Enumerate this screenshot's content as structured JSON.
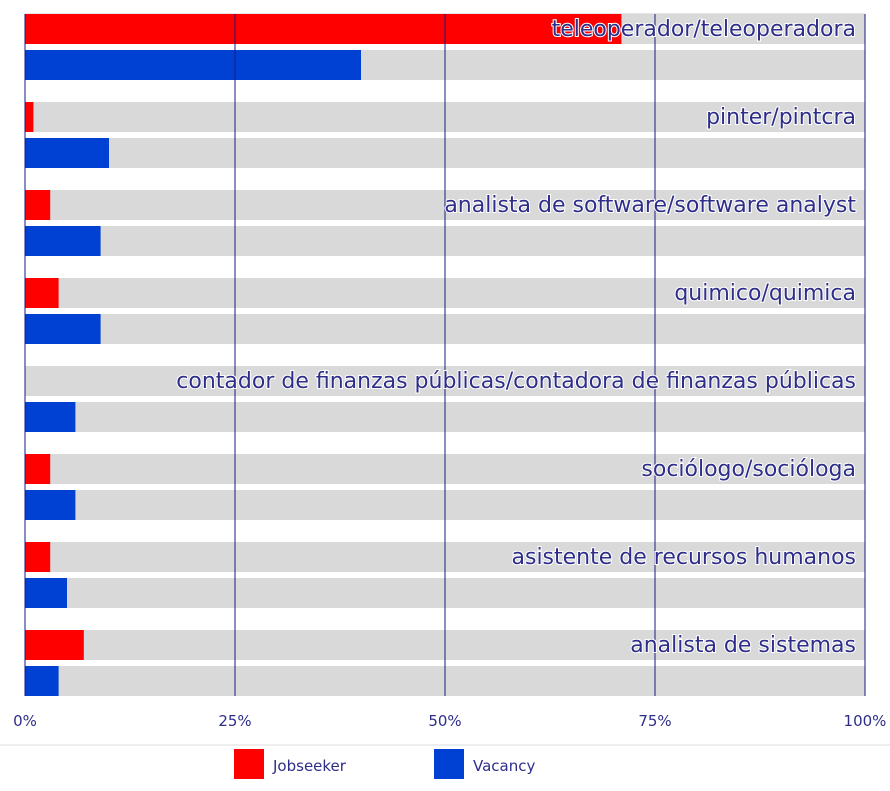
{
  "chart_data": {
    "type": "bar",
    "orientation": "horizontal",
    "categories": [
      "teleoperador/teleoperadora",
      "pinter/pintcra",
      "analista de software/software analyst",
      "quimico/quimica",
      "contador de finanzas públicas/contadora de finanzas públicas",
      "sociólogo/socióloga",
      "asistente de recursos humanos",
      "analista de sistemas"
    ],
    "series": [
      {
        "name": "Jobseeker",
        "color": "#ff0000",
        "values": [
          71,
          1,
          3,
          4,
          0,
          3,
          3,
          7
        ]
      },
      {
        "name": "Vacancy",
        "color": "#0041d3",
        "values": [
          40,
          10,
          9,
          9,
          6,
          6,
          5,
          4
        ]
      }
    ],
    "xlim": [
      0,
      100
    ],
    "x_ticks": [
      "0%",
      "25%",
      "50%",
      "75%",
      "100%"
    ],
    "track_color": "#d9d9d9",
    "gridline_color": "#1a1a80",
    "label_color": "#2e2e8a",
    "legend_position": "bottom"
  }
}
